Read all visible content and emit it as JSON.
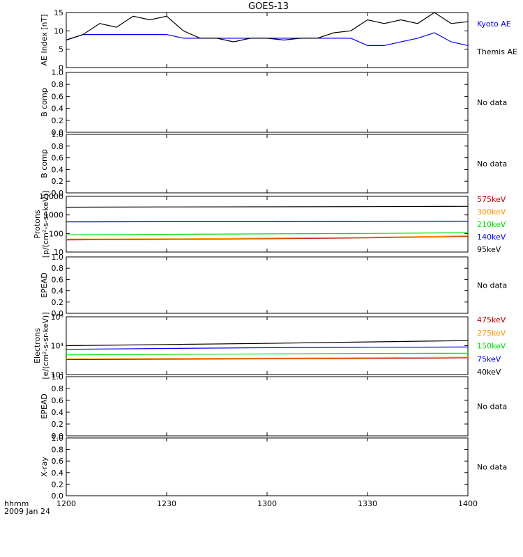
{
  "title": "GOES-13",
  "footer": {
    "units_label": "hhmm",
    "date_label": "2009 Jan 24"
  },
  "colors": {
    "kyoto": "#0000ff",
    "themis": "#000000",
    "red": "#c00000",
    "orange": "#ff9900",
    "green": "#00e000",
    "blue": "#0000ff",
    "black": "#000000"
  },
  "x_axis": {
    "ticks": [
      "1200",
      "1230",
      "1300",
      "1330",
      "1400"
    ]
  },
  "chart_data": [
    {
      "type": "line",
      "ylabel": "AE Index [nT]",
      "ylim": [
        0,
        15
      ],
      "yticks": [
        "0",
        "5",
        "10",
        "15"
      ],
      "x_minutes": [
        0,
        5,
        10,
        15,
        20,
        25,
        30,
        35,
        40,
        45,
        50,
        55,
        60,
        65,
        70,
        75,
        80,
        85,
        90,
        95,
        100,
        105,
        110,
        115,
        120
      ],
      "series": [
        {
          "name": "Kyoto AE",
          "color_key": "kyoto",
          "values": [
            7.5,
            9,
            9,
            9,
            9,
            9,
            9,
            8,
            8,
            8,
            8,
            8,
            8,
            8,
            8,
            8,
            8,
            8,
            6,
            6,
            7,
            8,
            9.5,
            7,
            6
          ]
        },
        {
          "name": "Themis AE",
          "color_key": "themis",
          "values": [
            7.5,
            9,
            12,
            11,
            14,
            13,
            14,
            10,
            8,
            8,
            7,
            8,
            8,
            7.5,
            8,
            8,
            9.5,
            10,
            13,
            12,
            13,
            12,
            15,
            12,
            12.5
          ]
        }
      ]
    },
    {
      "type": "line",
      "ylabel": "B comp",
      "ylim": [
        0,
        1
      ],
      "yticks": [
        "0.0",
        "0.2",
        "0.4",
        "0.6",
        "0.8",
        "1.0"
      ],
      "note": "No data"
    },
    {
      "type": "line",
      "ylabel": "B comp",
      "ylim": [
        0,
        1
      ],
      "yticks": [
        "0.0",
        "0.2",
        "0.4",
        "0.6",
        "0.8",
        "1.0"
      ],
      "note": "No data"
    },
    {
      "type": "line",
      "scale": "log",
      "ylabel": "Protons",
      "ylabel2": "[p/(cm²-s-sr-keV)]",
      "ylim": [
        10,
        10000
      ],
      "yticks": [
        "10",
        "100",
        "1000",
        "10000"
      ],
      "x_minutes": [
        0,
        30,
        60,
        90,
        120
      ],
      "series": [
        {
          "name": "575keV",
          "color_key": "red",
          "values": [
            45,
            48,
            52,
            58,
            70
          ]
        },
        {
          "name": "300keV",
          "color_key": "orange",
          "values": [
            50,
            52,
            56,
            62,
            75
          ]
        },
        {
          "name": "210keV",
          "color_key": "green",
          "values": [
            85,
            90,
            95,
            100,
            110
          ]
        },
        {
          "name": "140keV",
          "color_key": "blue",
          "values": [
            420,
            430,
            430,
            440,
            450
          ]
        },
        {
          "name": "95keV",
          "color_key": "black",
          "values": [
            2600,
            2700,
            2750,
            2800,
            2900
          ]
        }
      ]
    },
    {
      "type": "line",
      "ylabel": "EPEAD",
      "ylim": [
        0,
        1
      ],
      "yticks": [
        "0.0",
        "0.2",
        "0.4",
        "0.6",
        "0.8",
        "1.0"
      ],
      "note": "No data"
    },
    {
      "type": "line",
      "scale": "log",
      "ylabel": "Electrons",
      "ylabel2": "[e/(cm²-s-sr-keV)]",
      "ylim": [
        1000,
        100000
      ],
      "yticks": [
        "10³",
        "10⁴",
        "10⁵"
      ],
      "x_minutes": [
        0,
        30,
        60,
        90,
        120
      ],
      "series": [
        {
          "name": "475keV",
          "color_key": "red",
          "values": [
            3300,
            3400,
            3500,
            3600,
            3800
          ]
        },
        {
          "name": "275keV",
          "color_key": "orange",
          "values": [
            3500,
            3600,
            3700,
            3800,
            4000
          ]
        },
        {
          "name": "150keV",
          "color_key": "green",
          "values": [
            4800,
            5000,
            5200,
            5400,
            5500
          ]
        },
        {
          "name": "75keV",
          "color_key": "blue",
          "values": [
            7500,
            8000,
            8500,
            8800,
            9000
          ]
        },
        {
          "name": "40keV",
          "color_key": "black",
          "values": [
            10000,
            11000,
            12000,
            13500,
            15000
          ]
        }
      ]
    },
    {
      "type": "line",
      "ylabel": "EPEAD",
      "ylim": [
        0,
        1
      ],
      "yticks": [
        "0.0",
        "0.2",
        "0.4",
        "0.6",
        "0.8",
        "1.0"
      ],
      "note": "No data"
    },
    {
      "type": "line",
      "ylabel": "X-ray",
      "ylim": [
        0,
        1
      ],
      "yticks": [
        "0.0",
        "0.2",
        "0.4",
        "0.6",
        "0.8",
        "1.0"
      ],
      "note": "No data"
    }
  ]
}
